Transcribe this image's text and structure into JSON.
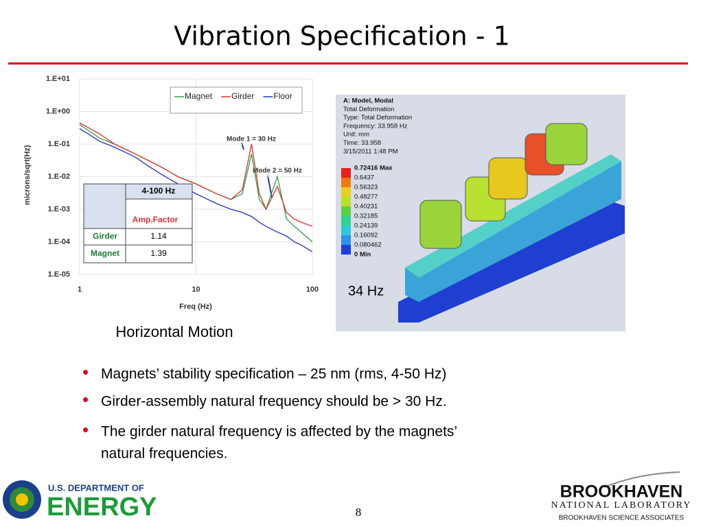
{
  "header": {
    "title": "Vibration Specification - 1"
  },
  "chart": {
    "type": "line",
    "x_label": "Freq (Hz)",
    "y_label": "microns/sqrt(Hz)",
    "x_log": true,
    "y_log": true,
    "grid": true,
    "legend": "upper right",
    "xlim": [
      1,
      100
    ],
    "xticks": [
      1,
      10,
      100
    ],
    "ylim": [
      1e-05,
      10
    ],
    "yticks": [
      {
        "value": 10,
        "label": "1.E+01"
      },
      {
        "value": 1,
        "label": "1.E+00"
      },
      {
        "value": 0.1,
        "label": "1.E-01"
      },
      {
        "value": 0.01,
        "label": "1.E-02"
      },
      {
        "value": 0.001,
        "label": "1.E-03"
      },
      {
        "value": 0.0001,
        "label": "1.E-04"
      },
      {
        "value": 1e-05,
        "label": "1.E-05"
      }
    ],
    "x": [
      1,
      1.5,
      2,
      3,
      4,
      5,
      7,
      10,
      15,
      20,
      25,
      30,
      35,
      40,
      50,
      60,
      70,
      80,
      100
    ],
    "series": [
      {
        "name": "Magnet",
        "color": "#2e9e4a",
        "values": [
          0.4,
          0.15,
          0.1,
          0.05,
          0.03,
          0.02,
          0.01,
          0.006,
          0.003,
          0.002,
          0.003,
          0.05,
          0.002,
          0.001,
          0.01,
          0.0005,
          0.0003,
          0.0002,
          0.0001
        ]
      },
      {
        "name": "Girder",
        "color": "#d9302c",
        "values": [
          0.45,
          0.2,
          0.1,
          0.05,
          0.03,
          0.02,
          0.01,
          0.006,
          0.003,
          0.002,
          0.004,
          0.1,
          0.003,
          0.001,
          0.005,
          0.0008,
          0.0005,
          0.0004,
          0.0003
        ]
      },
      {
        "name": "Floor",
        "color": "#2030c0",
        "values": [
          0.3,
          0.12,
          0.08,
          0.04,
          0.02,
          0.012,
          0.006,
          0.003,
          0.0015,
          0.001,
          0.0008,
          0.0006,
          0.0004,
          0.0003,
          0.0002,
          0.00015,
          0.0001,
          8e-05,
          5e-05
        ]
      }
    ],
    "annotations": [
      "Mode 1 = 30 Hz",
      "Mode 2 = 50 Hz"
    ],
    "table": {
      "range": "4-100 Hz",
      "column": "Amp.Factor",
      "rows": [
        [
          "Girder",
          "1.14"
        ],
        [
          "Magnet",
          "1.39"
        ]
      ]
    },
    "caption": "Horizontal Motion"
  },
  "fea": {
    "lines": [
      "A: Model, Modal",
      "Total Deformation",
      "Type: Total Deformation",
      "Frequency: 33.958 Hz",
      "Unit: mm",
      "Time: 33.958",
      "3/15/2011 1:48 PM"
    ],
    "scale": [
      "0.72416 Max",
      "0.6437",
      "0.56323",
      "0.48277",
      "0.40231",
      "0.32185",
      "0.24139",
      "0.16092",
      "0.080462",
      "0 Min"
    ],
    "label": "34 Hz"
  },
  "bullets": [
    "Magnets’ stability specification – 25 nm (rms, 4-50 Hz)",
    "Girder-assembly natural frequency should be > 30 Hz.",
    "The girder natural frequency is affected by the magnets’",
    "natural frequencies."
  ],
  "footer": {
    "doe_top": "U.S. DEPARTMENT OF",
    "doe_main": "ENERGY",
    "page": "8",
    "bnl_main": "BROOKHAVEN",
    "bnl_sub": "NATIONAL LABORATORY",
    "bnl_assoc": "BROOKHAVEN SCIENCE ASSOCIATES"
  }
}
